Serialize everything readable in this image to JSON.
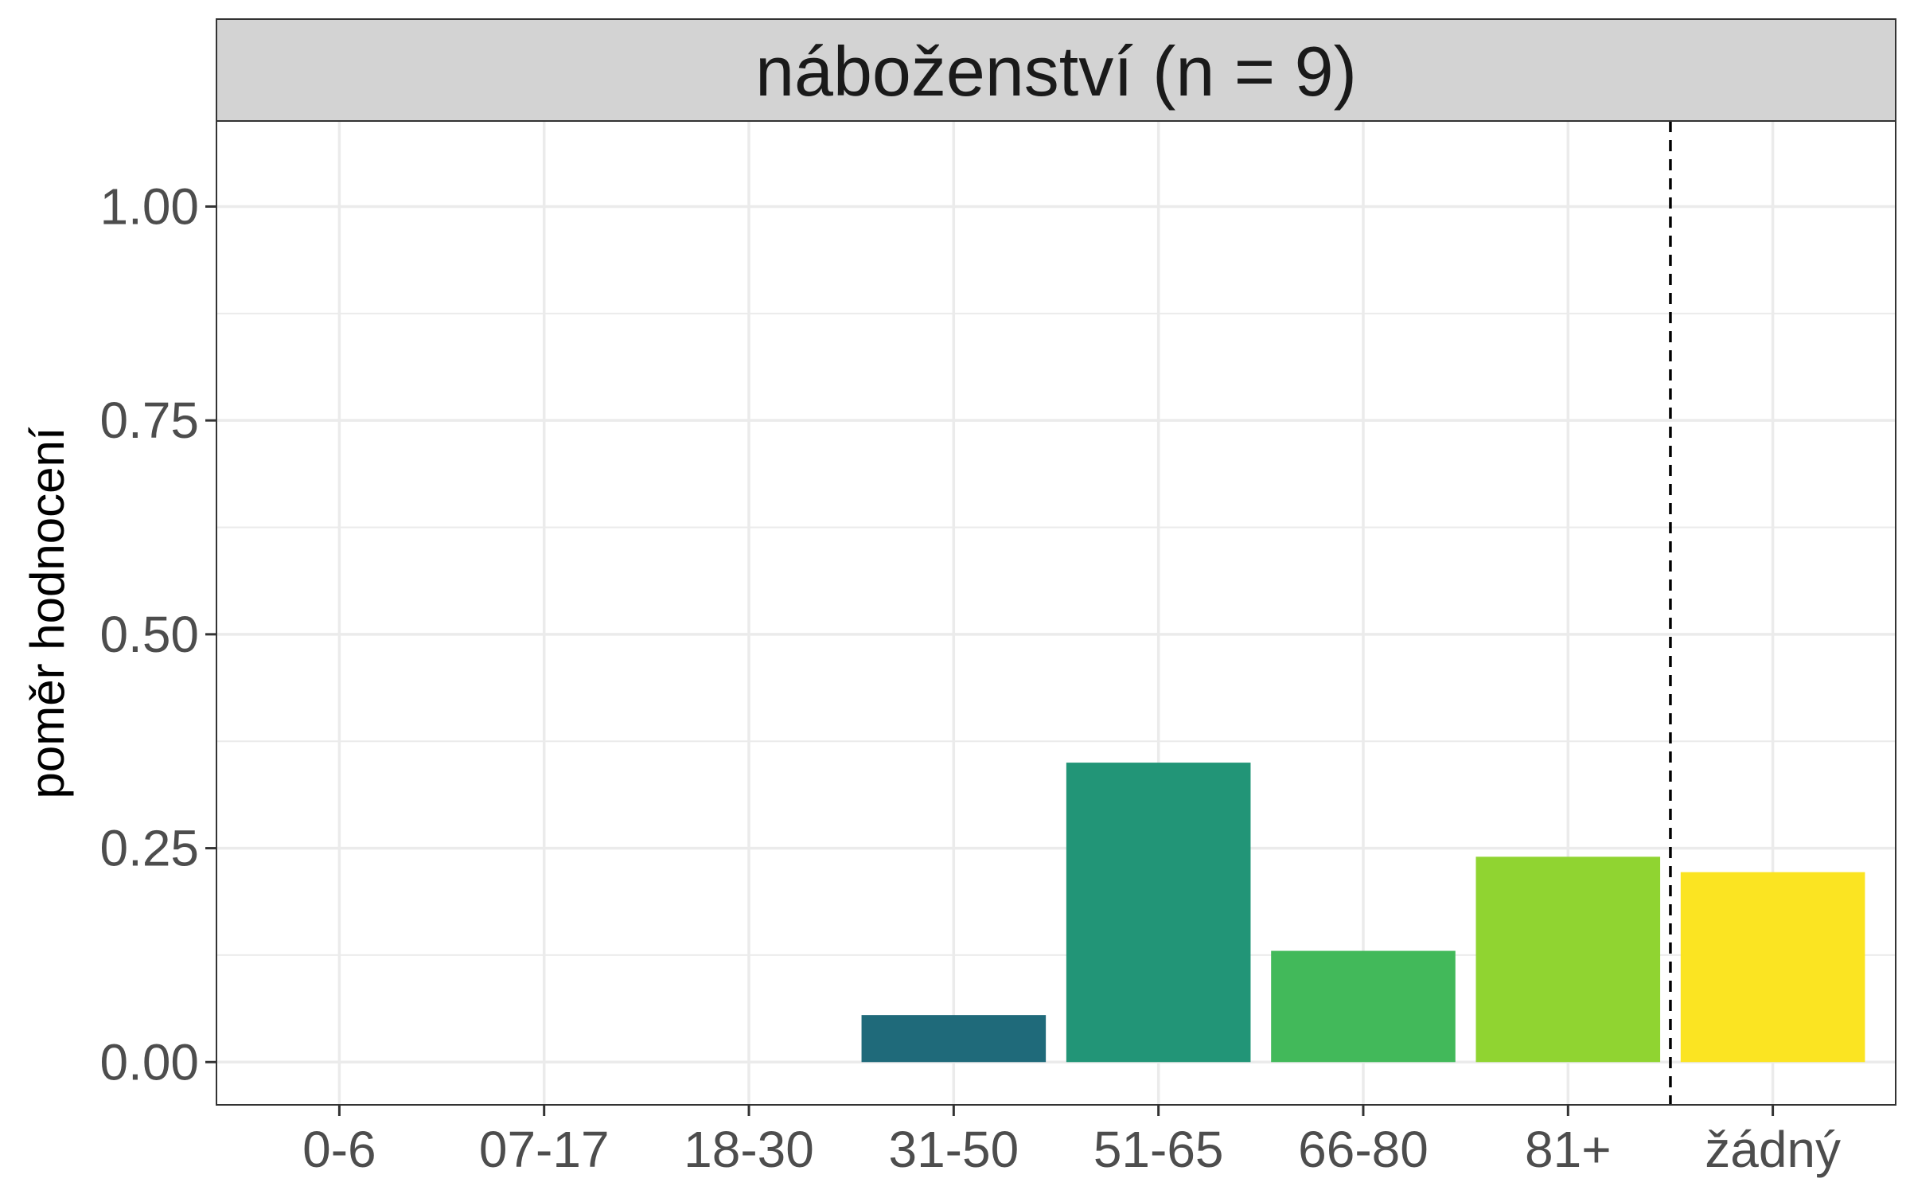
{
  "chart_data": {
    "type": "bar",
    "title": "náboženství (n = 9)",
    "xlabel": "",
    "ylabel": "poměr hodnocení",
    "categories": [
      "0-6",
      "07-17",
      "18-30",
      "31-50",
      "51-65",
      "66-80",
      "81+",
      "žádný"
    ],
    "values": [
      0,
      0,
      0,
      0.055,
      0.35,
      0.13,
      0.24,
      0.222
    ],
    "colors": [
      "#440154",
      "#46337e",
      "#365c8d",
      "#21908d",
      "#21918c",
      "#44bf70",
      "#8fd744",
      "#fde725"
    ],
    "bar_colors": [
      "#440154",
      "#46337e",
      "#365c8d",
      "#1f6a7a",
      "#229577",
      "#42b95a",
      "#90d431",
      "#fbe422"
    ],
    "ylim": [
      -0.05,
      1.1
    ],
    "yticks": [
      0,
      0.25,
      0.5,
      0.75,
      1.0
    ],
    "ytick_labels": [
      "0.00",
      "0.25",
      "0.50",
      "0.75",
      "1.00"
    ],
    "grid": true,
    "reference_line": {
      "type": "vertical-dashed",
      "between": [
        "81+",
        "žádný"
      ]
    },
    "legend": "none"
  }
}
